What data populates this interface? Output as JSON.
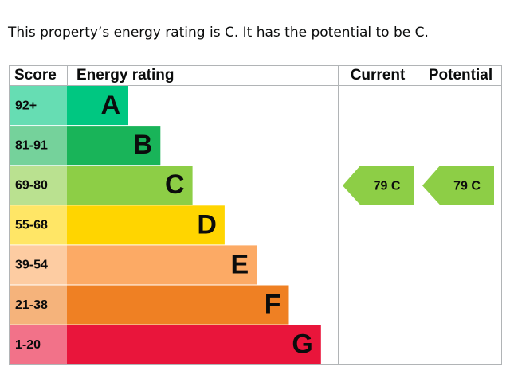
{
  "intro": "This property’s energy rating is C. It has the potential to be C.",
  "table": {
    "headers": [
      "Score",
      "Energy rating",
      "Current",
      "Potential"
    ],
    "bands": [
      {
        "score": "92+",
        "letter": "A",
        "color": "#00c781"
      },
      {
        "score": "81-91",
        "letter": "B",
        "color": "#19b459"
      },
      {
        "score": "69-80",
        "letter": "C",
        "color": "#8dce46"
      },
      {
        "score": "55-68",
        "letter": "D",
        "color": "#ffd500"
      },
      {
        "score": "39-54",
        "letter": "E",
        "color": "#fcaa65"
      },
      {
        "score": "21-38",
        "letter": "F",
        "color": "#ef8023"
      },
      {
        "score": "1-20",
        "letter": "G",
        "color": "#e9153b"
      }
    ],
    "current": "79 C",
    "potential": "79 C",
    "marker_color": "#8dce46"
  }
}
